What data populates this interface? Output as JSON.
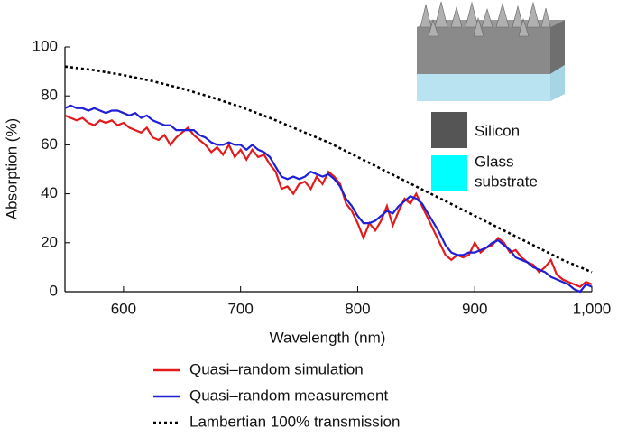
{
  "chart_data": {
    "type": "line",
    "xlabel": "Wavelength (nm)",
    "ylabel": "Absorption (%)",
    "xlim": [
      550,
      1000
    ],
    "xticks": [
      600,
      700,
      800,
      900,
      {
        "value": 1000,
        "label": "1,000"
      }
    ],
    "ylim": [
      0,
      100
    ],
    "yticks": [
      0,
      20,
      40,
      60,
      80,
      100
    ],
    "x": [
      550,
      555,
      560,
      565,
      570,
      575,
      580,
      585,
      590,
      595,
      600,
      605,
      610,
      615,
      620,
      625,
      630,
      635,
      640,
      645,
      650,
      655,
      660,
      665,
      670,
      675,
      680,
      685,
      690,
      695,
      700,
      705,
      710,
      715,
      720,
      725,
      730,
      735,
      740,
      745,
      750,
      755,
      760,
      765,
      770,
      775,
      780,
      785,
      790,
      795,
      800,
      805,
      810,
      815,
      820,
      825,
      830,
      835,
      840,
      845,
      850,
      855,
      860,
      865,
      870,
      875,
      880,
      885,
      890,
      895,
      900,
      905,
      910,
      915,
      920,
      925,
      930,
      935,
      940,
      945,
      950,
      955,
      960,
      965,
      970,
      975,
      980,
      985,
      990,
      995,
      1000
    ],
    "series": [
      {
        "name": "Quasi–random simulation",
        "color": "#e31a1c",
        "style": "solid",
        "values": [
          72,
          71,
          70,
          71,
          69,
          68,
          70,
          69,
          70,
          68,
          69,
          67,
          66,
          65,
          67,
          63,
          62,
          64,
          60,
          63,
          65,
          67,
          64,
          62,
          60,
          57,
          59,
          56,
          60,
          55,
          58,
          54,
          58,
          55,
          56,
          52,
          49,
          42,
          43,
          40,
          44,
          45,
          42,
          47,
          44,
          49,
          47,
          44,
          36,
          33,
          28,
          22,
          28,
          25,
          29,
          35,
          27,
          33,
          38,
          36,
          40,
          35,
          30,
          25,
          20,
          15,
          13,
          15,
          14,
          15,
          20,
          16,
          18,
          19,
          22,
          20,
          16,
          17,
          14,
          12,
          11,
          8,
          10,
          13,
          7,
          5,
          4,
          3,
          2,
          4,
          3
        ]
      },
      {
        "name": "Quasi–random measurement",
        "color": "#1f1fd6",
        "style": "solid",
        "values": [
          75,
          76,
          75,
          75,
          74,
          75,
          74,
          73,
          74,
          74,
          73,
          72,
          73,
          71,
          72,
          70,
          69,
          68,
          68,
          66,
          66,
          66,
          66,
          64,
          63,
          61,
          60,
          60,
          61,
          60,
          60,
          58,
          60,
          58,
          57,
          55,
          51,
          47,
          46,
          47,
          46,
          47,
          49,
          48,
          47,
          48,
          46,
          43,
          38,
          35,
          31,
          28,
          28,
          29,
          31,
          33,
          32,
          35,
          37,
          39,
          38,
          36,
          32,
          28,
          24,
          19,
          16,
          15,
          15,
          16,
          16,
          17,
          18,
          20,
          21,
          19,
          17,
          14,
          13,
          12,
          10,
          9,
          8,
          6,
          5,
          4,
          3,
          1,
          0,
          3,
          2
        ]
      },
      {
        "name": "Lambertian 100% transmission",
        "color": "#000000",
        "style": "dotted",
        "x": [
          550,
          575,
          600,
          625,
          650,
          675,
          700,
          725,
          750,
          775,
          800,
          825,
          850,
          875,
          900,
          925,
          950,
          975,
          1000
        ],
        "values": [
          92,
          90.5,
          88.5,
          86,
          83,
          79.5,
          75.5,
          71,
          66,
          61,
          55,
          49,
          43,
          37,
          31,
          25,
          19,
          13,
          8
        ]
      }
    ],
    "inset": {
      "items": [
        {
          "label": "Silicon",
          "color": "#555555"
        },
        {
          "label": [
            "Glass",
            "substrate"
          ],
          "color": "#00ffff"
        }
      ]
    }
  }
}
